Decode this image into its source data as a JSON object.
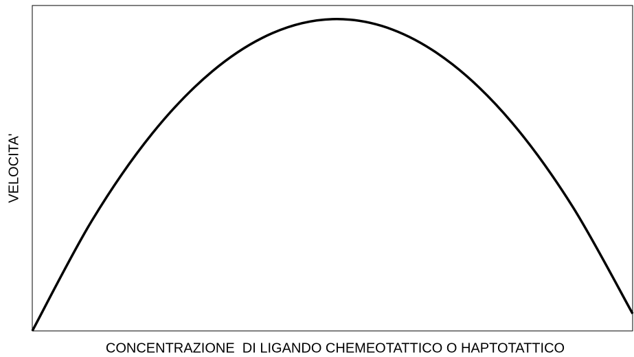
{
  "chart_data": {
    "type": "line",
    "x_label": "CONCENTRAZIONE  DI LIGANDO CHEMEOTATTICO O HAPTOTATTICO",
    "y_label": "VELOCITA'",
    "x": [
      0,
      10,
      20,
      30,
      40,
      50,
      60,
      70,
      80,
      90,
      100
    ],
    "series": [
      {
        "color": "#000000",
        "values": [
          0,
          34.1,
          60.7,
          79.8,
          91.5,
          95.8,
          92.6,
          81.9,
          63.8,
          38.2,
          5.3
        ]
      }
    ],
    "xlim": [
      0,
      100
    ],
    "ylim": [
      0,
      100
    ]
  }
}
